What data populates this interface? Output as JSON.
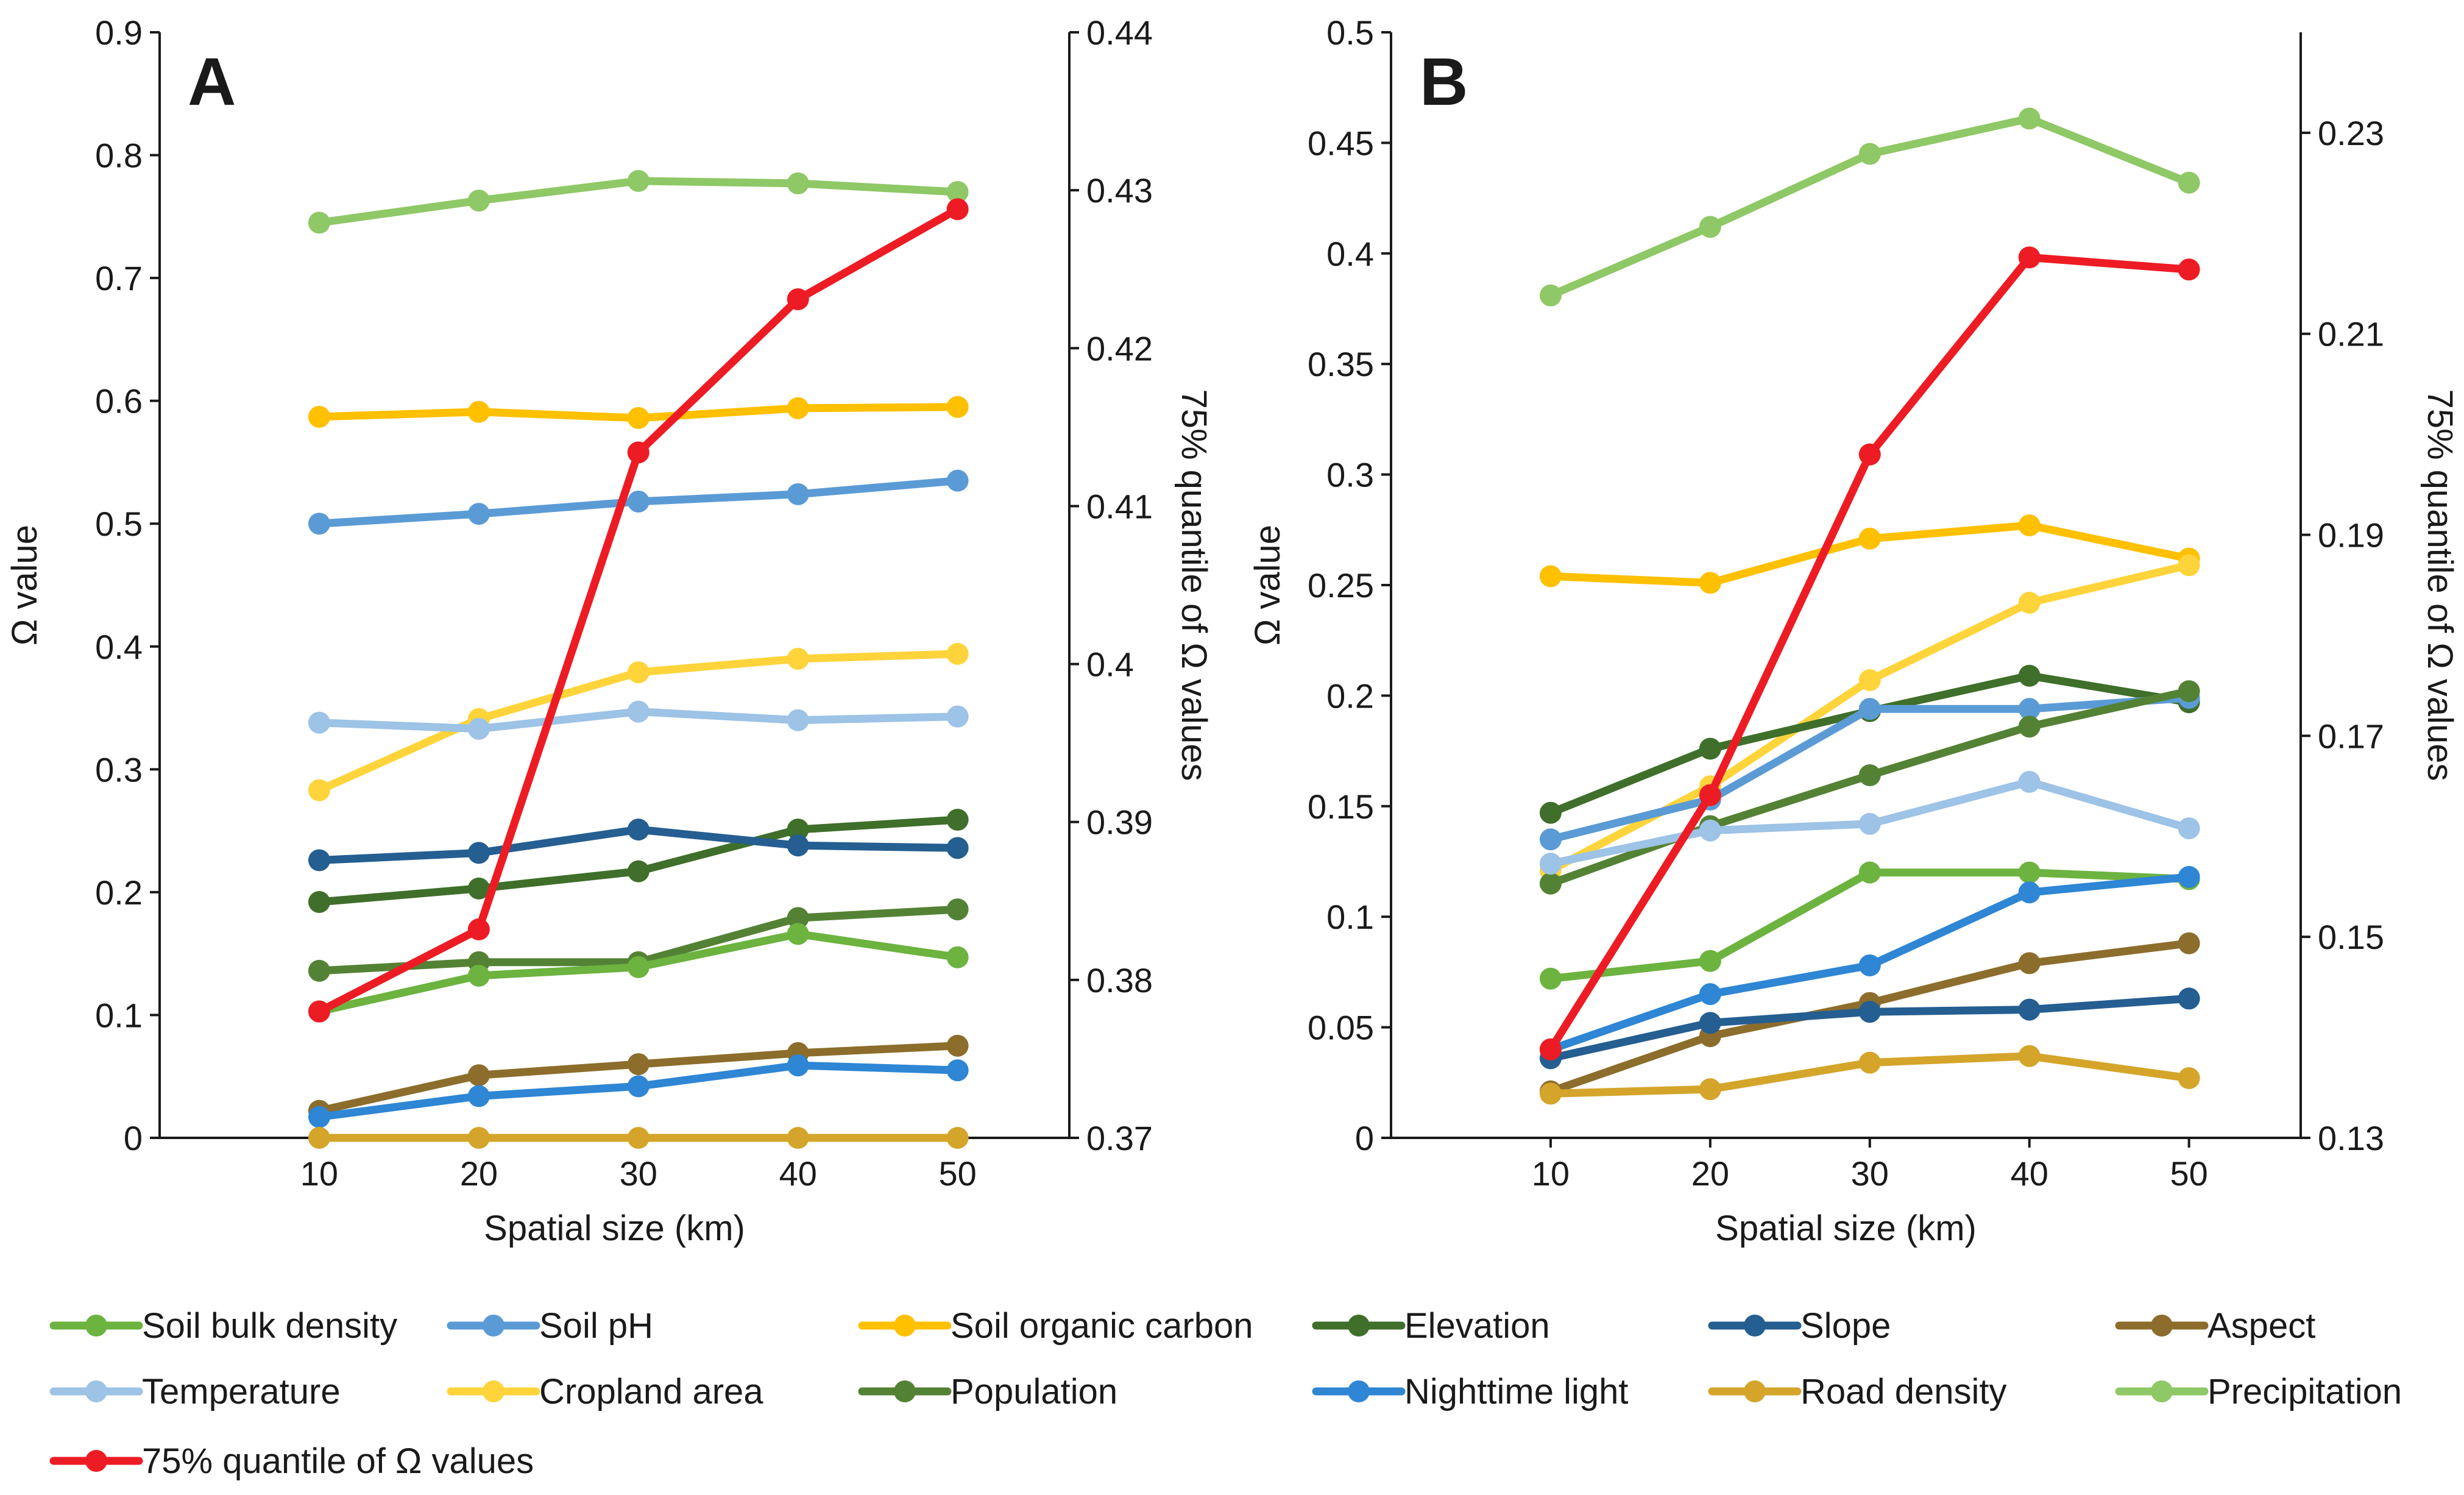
{
  "figure": {
    "legend": [
      {
        "label": "Soil bulk density",
        "color": "#6cb33f"
      },
      {
        "label": "Soil pH",
        "color": "#5b9bd5"
      },
      {
        "label": "Soil organic carbon",
        "color": "#ffc000"
      },
      {
        "label": "Elevation",
        "color": "#3f6f2a"
      },
      {
        "label": "Slope",
        "color": "#255e91"
      },
      {
        "label": "Aspect",
        "color": "#8c6d2c"
      },
      {
        "label": "Temperature",
        "color": "#9dc3e6"
      },
      {
        "label": "Cropland area",
        "color": "#ffd43b"
      },
      {
        "label": "Population",
        "color": "#548235"
      },
      {
        "label": "Nighttime light",
        "color": "#2e86d4"
      },
      {
        "label": "Road density",
        "color": "#d4a52a"
      },
      {
        "label": "Precipitation",
        "color": "#8fc866"
      },
      {
        "label": "75% quantile of Ω values",
        "color": "#ed1c24"
      }
    ]
  },
  "chart_data": [
    {
      "type": "line",
      "panel": "A",
      "xlabel": "Spatial size (km)",
      "ylabel": "Ω value",
      "y2label": "75% quantile of Ω values",
      "x": [
        10,
        20,
        30,
        40,
        50
      ],
      "x_ticks": [
        "10",
        "20",
        "30",
        "40",
        "50"
      ],
      "xlim": [
        0,
        57
      ],
      "ylim": [
        0,
        0.9
      ],
      "y_ticks": [
        "0",
        "0.1",
        "0.2",
        "0.3",
        "0.4",
        "0.5",
        "0.6",
        "0.7",
        "0.8",
        "0.9"
      ],
      "y2lim": [
        0.37,
        0.44
      ],
      "y2_ticks": [
        "0.37",
        "0.38",
        "0.39",
        "0.4",
        "0.41",
        "0.42",
        "0.43",
        "0.44"
      ],
      "series": [
        {
          "name": "Precipitation",
          "axis": "left",
          "values": [
            0.745,
            0.763,
            0.779,
            0.777,
            0.77
          ]
        },
        {
          "name": "Soil organic carbon",
          "axis": "left",
          "values": [
            0.587,
            0.591,
            0.586,
            0.594,
            0.595
          ]
        },
        {
          "name": "Soil pH",
          "axis": "left",
          "values": [
            0.5,
            0.508,
            0.518,
            0.524,
            0.535
          ]
        },
        {
          "name": "Cropland area",
          "axis": "left",
          "values": [
            0.283,
            0.341,
            0.379,
            0.39,
            0.394
          ]
        },
        {
          "name": "Temperature",
          "axis": "left",
          "values": [
            0.338,
            0.333,
            0.347,
            0.34,
            0.343
          ]
        },
        {
          "name": "Elevation",
          "axis": "left",
          "values": [
            0.192,
            0.203,
            0.217,
            0.251,
            0.259
          ]
        },
        {
          "name": "Slope",
          "axis": "left",
          "values": [
            0.226,
            0.232,
            0.251,
            0.238,
            0.236
          ]
        },
        {
          "name": "Population",
          "axis": "left",
          "values": [
            0.136,
            0.143,
            0.143,
            0.179,
            0.186
          ]
        },
        {
          "name": "Soil bulk density",
          "axis": "left",
          "values": [
            0.103,
            0.132,
            0.139,
            0.166,
            0.147
          ]
        },
        {
          "name": "Aspect",
          "axis": "left",
          "values": [
            0.022,
            0.051,
            0.06,
            0.069,
            0.075
          ]
        },
        {
          "name": "Nighttime light",
          "axis": "left",
          "values": [
            0.017,
            0.034,
            0.042,
            0.059,
            0.055
          ]
        },
        {
          "name": "Road density",
          "axis": "left",
          "values": [
            0.0,
            0.0,
            0.0,
            0.0,
            0.0
          ]
        },
        {
          "name": "75% quantile of Ω values",
          "axis": "right",
          "values": [
            0.378,
            0.3832,
            0.4134,
            0.4231,
            0.4288
          ]
        }
      ]
    },
    {
      "type": "line",
      "panel": "B",
      "xlabel": "Spatial size (km)",
      "ylabel": "Ω value",
      "y2label": "75% quantile of Ω values",
      "x": [
        10,
        20,
        30,
        40,
        50
      ],
      "x_ticks": [
        "10",
        "20",
        "30",
        "40",
        "50"
      ],
      "xlim": [
        0,
        57
      ],
      "ylim": [
        0,
        0.5
      ],
      "y_ticks": [
        "0",
        "0.05",
        "0.1",
        "0.15",
        "0.2",
        "0.25",
        "0.3",
        "0.35",
        "0.4",
        "0.45",
        "0.5"
      ],
      "y2lim": [
        0.13,
        0.24
      ],
      "y2_ticks": [
        "0.13",
        "0.15",
        "0.17",
        "0.19",
        "0.21",
        "0.23"
      ],
      "series": [
        {
          "name": "Precipitation",
          "axis": "left",
          "values": [
            0.381,
            0.412,
            0.445,
            0.461,
            0.432
          ]
        },
        {
          "name": "Soil organic carbon",
          "axis": "left",
          "values": [
            0.254,
            0.251,
            0.271,
            0.277,
            0.262
          ]
        },
        {
          "name": "Cropland area",
          "axis": "left",
          "values": [
            0.121,
            0.159,
            0.207,
            0.242,
            0.259
          ]
        },
        {
          "name": "Elevation",
          "axis": "left",
          "values": [
            0.147,
            0.176,
            0.193,
            0.209,
            0.197
          ]
        },
        {
          "name": "Soil pH",
          "axis": "left",
          "values": [
            0.135,
            0.153,
            0.194,
            0.194,
            0.199
          ]
        },
        {
          "name": "Population",
          "axis": "left",
          "values": [
            0.115,
            0.141,
            0.164,
            0.186,
            0.202
          ]
        },
        {
          "name": "Temperature",
          "axis": "left",
          "values": [
            0.124,
            0.139,
            0.142,
            0.161,
            0.14
          ]
        },
        {
          "name": "Soil bulk density",
          "axis": "left",
          "values": [
            0.072,
            0.08,
            0.12,
            0.12,
            0.117
          ]
        },
        {
          "name": "Nighttime light",
          "axis": "left",
          "values": [
            0.04,
            0.065,
            0.078,
            0.111,
            0.118
          ]
        },
        {
          "name": "Aspect",
          "axis": "left",
          "values": [
            0.021,
            0.046,
            0.061,
            0.079,
            0.088
          ]
        },
        {
          "name": "Slope",
          "axis": "left",
          "values": [
            0.036,
            0.052,
            0.057,
            0.058,
            0.063
          ]
        },
        {
          "name": "Road density",
          "axis": "left",
          "values": [
            0.02,
            0.022,
            0.034,
            0.037,
            0.027
          ]
        },
        {
          "name": "75% quantile of Ω values",
          "axis": "right",
          "values": [
            0.1388,
            0.1641,
            0.198,
            0.2176,
            0.2164
          ]
        }
      ]
    }
  ]
}
